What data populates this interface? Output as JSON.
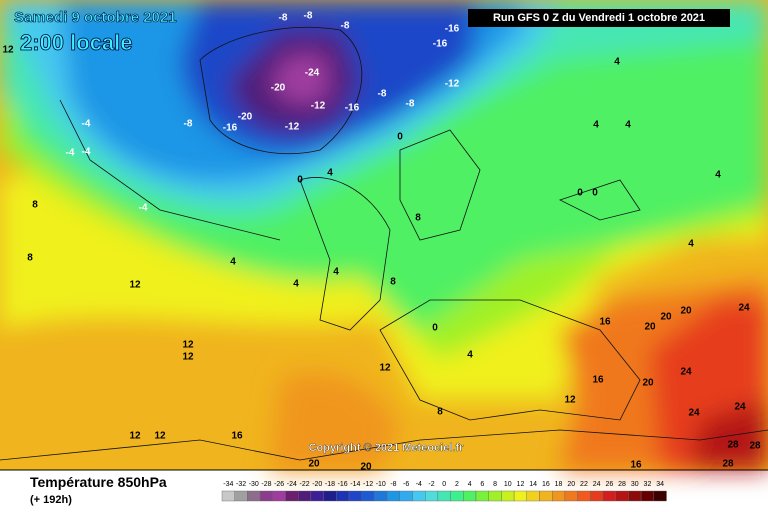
{
  "header": {
    "date": "Samedi 9 octobre 2021",
    "time": "2:00 locale",
    "run": "Run GFS 0 Z du Vendredi 1 octobre 2021"
  },
  "copyright": "Copyright © 2021 Meteociel.fr",
  "footer": {
    "title": "Température 850hPa",
    "lead": "(+ 192h)"
  },
  "scale": {
    "ticks": [
      -34,
      -32,
      -30,
      -28,
      -26,
      -24,
      -22,
      -20,
      -18,
      -16,
      -14,
      -12,
      -10,
      -8,
      -6,
      -4,
      -2,
      0,
      2,
      4,
      6,
      8,
      10,
      12,
      14,
      16,
      18,
      20,
      22,
      24,
      26,
      28,
      30,
      32,
      34
    ],
    "colors": [
      "#c8c8c8",
      "#a0a0a0",
      "#8c6e8c",
      "#8c3c8c",
      "#a03ca0",
      "#6e1e6e",
      "#501e78",
      "#3c1e96",
      "#1e1e8c",
      "#1e32b4",
      "#1e46c8",
      "#1e5ad2",
      "#1e78dc",
      "#1e96e6",
      "#32aaf0",
      "#46c8f0",
      "#50dcdc",
      "#46e6b4",
      "#3cf08c",
      "#50f064",
      "#78f03c",
      "#a0f028",
      "#c8f01e",
      "#f0f01e",
      "#f0d21e",
      "#f0b41e",
      "#f0961e",
      "#f0781e",
      "#f05a1e",
      "#e63c1e",
      "#d21e1e",
      "#b41414",
      "#8c0a0a",
      "#640000",
      "#3c0000"
    ]
  },
  "contour_labels": [
    -24,
    -20,
    -16,
    -20,
    -12,
    -12,
    -16,
    -8,
    -8,
    -12,
    -16,
    -16,
    -8,
    -8,
    -8,
    -8,
    -4,
    -4,
    -4,
    -4,
    0,
    0,
    4,
    4,
    4,
    4,
    4,
    4,
    4,
    4,
    4,
    0,
    0,
    8,
    8,
    8,
    8,
    12,
    12,
    12,
    12,
    12,
    12,
    12,
    12,
    16,
    16,
    16,
    16,
    20,
    20,
    20,
    20,
    24,
    24,
    24,
    24,
    28,
    28,
    28,
    20,
    20,
    8,
    4,
    0
  ]
}
